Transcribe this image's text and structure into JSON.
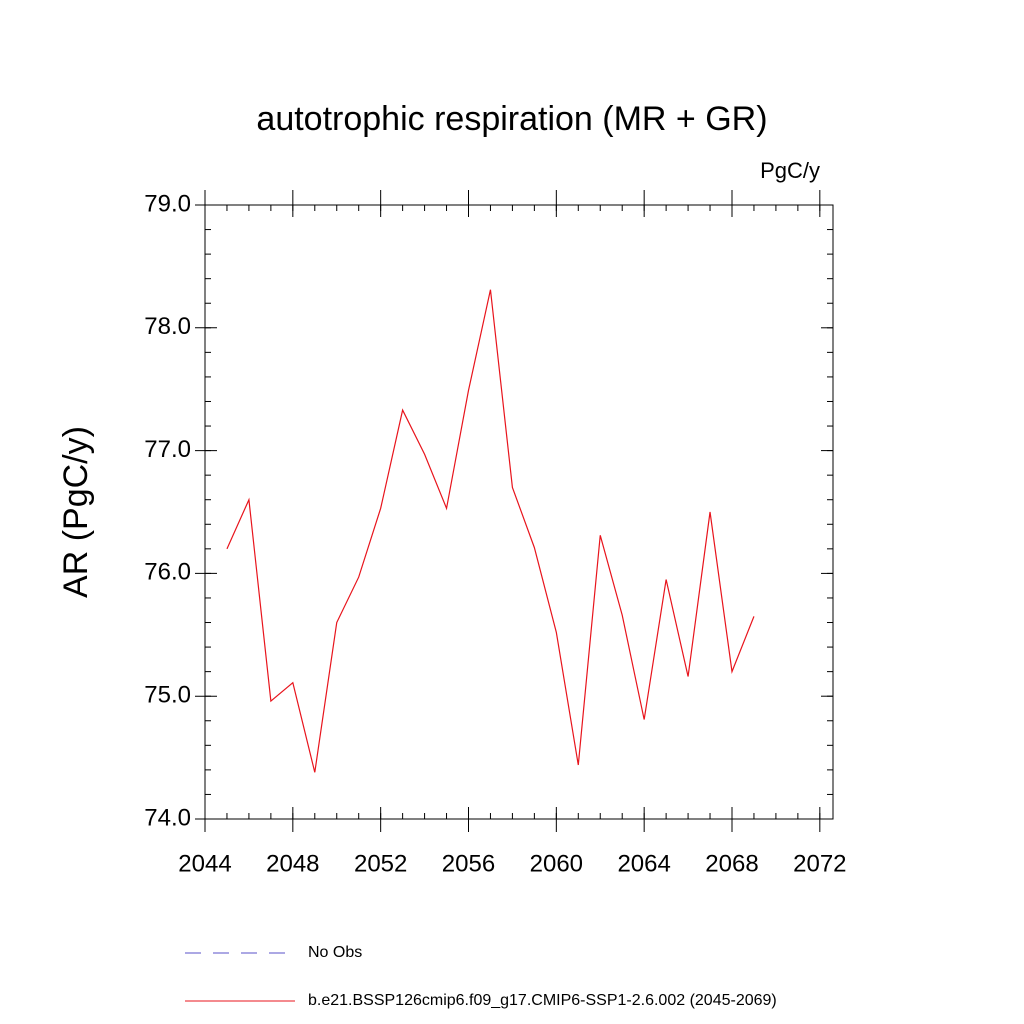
{
  "chart_data": {
    "type": "line",
    "title": "autotrophic respiration (MR + GR)",
    "units_label": "PgC/y",
    "y_label": "AR  (PgC/y)",
    "x": [
      2045,
      2046,
      2047,
      2048,
      2049,
      2050,
      2051,
      2052,
      2053,
      2054,
      2055,
      2056,
      2057,
      2058,
      2059,
      2060,
      2061,
      2062,
      2063,
      2064,
      2065,
      2066,
      2067,
      2068,
      2069
    ],
    "series": [
      {
        "name": "No Obs",
        "color": "#5a50c8",
        "dashed": true,
        "values": [
          null,
          null,
          null,
          null,
          null,
          null,
          null,
          null,
          null,
          null,
          null,
          null,
          null,
          null,
          null,
          null,
          null,
          null,
          null,
          null,
          null,
          null,
          null,
          null,
          null
        ]
      },
      {
        "name": "b.e21.BSSP126cmip6.f09_g17.CMIP6-SSP1-2.6.002 (2045-2069)",
        "color": "#e8141c",
        "dashed": false,
        "values": [
          76.2,
          76.6,
          74.96,
          75.11,
          74.38,
          75.6,
          75.97,
          76.53,
          77.33,
          76.97,
          76.53,
          77.49,
          78.31,
          76.7,
          76.21,
          75.52,
          74.44,
          76.31,
          75.66,
          74.81,
          75.95,
          75.16,
          76.5,
          75.2,
          75.65
        ]
      }
    ],
    "xlim": [
      2044,
      2072.6
    ],
    "xticks": [
      2044,
      2048,
      2052,
      2056,
      2060,
      2064,
      2068,
      2072
    ],
    "x_minor_step": 1,
    "ylim": [
      74,
      79
    ],
    "yticks": [
      {
        "value": 74,
        "label": "74.0"
      },
      {
        "value": 75,
        "label": "75.0"
      },
      {
        "value": 76,
        "label": "76.0"
      },
      {
        "value": 77,
        "label": "77.0"
      },
      {
        "value": 78,
        "label": "78.0"
      },
      {
        "value": 79,
        "label": "79.0"
      }
    ],
    "y_minor_step": 0.2,
    "grid": false
  }
}
